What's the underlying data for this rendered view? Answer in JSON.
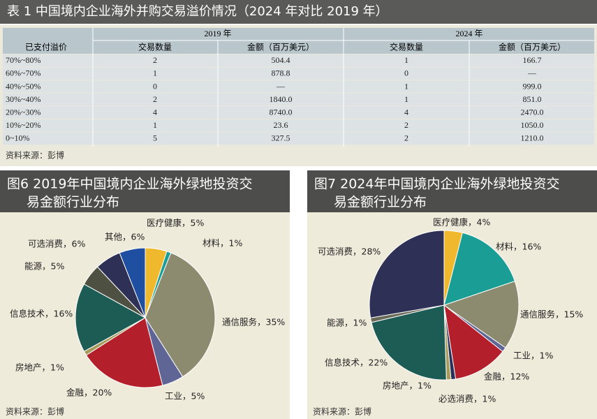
{
  "header": {
    "title": "表 1  中国境内企业海外并购交易溢价情况（2024 年对比 2019 年）"
  },
  "table": {
    "group_headers": [
      "2019 年",
      "2024 年"
    ],
    "columns": [
      "已支付溢价",
      "交易数量",
      "金额（百万美元）",
      "交易数量",
      "金额（百万美元）"
    ],
    "rows": [
      [
        "70%~80%",
        "2",
        "504.4",
        "1",
        "166.7"
      ],
      [
        "60%~70%",
        "1",
        "878.8",
        "0",
        "—"
      ],
      [
        "40%~50%",
        "0",
        "—",
        "1",
        "999.0"
      ],
      [
        "30%~40%",
        "2",
        "1840.0",
        "1",
        "851.0"
      ],
      [
        "20%~30%",
        "4",
        "8740.0",
        "4",
        "2470.0"
      ],
      [
        "10%~20%",
        "1",
        "23.6",
        "2",
        "1050.0"
      ],
      [
        "0~10%",
        "5",
        "327.5",
        "2",
        "1210.0"
      ]
    ],
    "source": "资料来源：彭博"
  },
  "chart_data": [
    {
      "type": "pie",
      "title_lines": [
        "图6 2019年中国境内企业海外绿地投资交",
        "易金额行业分布"
      ],
      "values": [
        5,
        1,
        35,
        5,
        20,
        1,
        16,
        5,
        6,
        6
      ],
      "value_labels": [
        "医疗健康，5%",
        "材料，1%",
        "通信服务，35%",
        "工业，5%",
        "金融，20%",
        "房地产，1%",
        "信息技术，16%",
        "能源，5%",
        "可选消费，6%",
        "其他，6%"
      ],
      "colors": [
        "#f0b82c",
        "#1a9d94",
        "#8d8b6f",
        "#5f6595",
        "#b31f2b",
        "#a79b5b",
        "#1d5b55",
        "#4e5041",
        "#2e3056",
        "#1e4fa0"
      ],
      "source": "资料来源：彭博"
    },
    {
      "type": "pie",
      "title_lines": [
        "图7 2024年中国境内企业海外绿地投资交",
        "易金额行业分布"
      ],
      "values": [
        4,
        16,
        15,
        1,
        12,
        1,
        1,
        22,
        1,
        28
      ],
      "value_labels": [
        "医疗健康，4%",
        "材料，16%",
        "通信服务，15%",
        "工业，1%",
        "金融，12%",
        "必选消费，1%",
        "房地产，1%",
        "信息技术，22%",
        "能源，1%",
        "可选消费，28%"
      ],
      "colors": [
        "#f0b82c",
        "#1a9d94",
        "#8d8b6f",
        "#5f6595",
        "#b31f2b",
        "#2a3158",
        "#a79b5b",
        "#1d5b55",
        "#6a6a58",
        "#2e3056"
      ],
      "source": "资料来源：彭博"
    }
  ]
}
